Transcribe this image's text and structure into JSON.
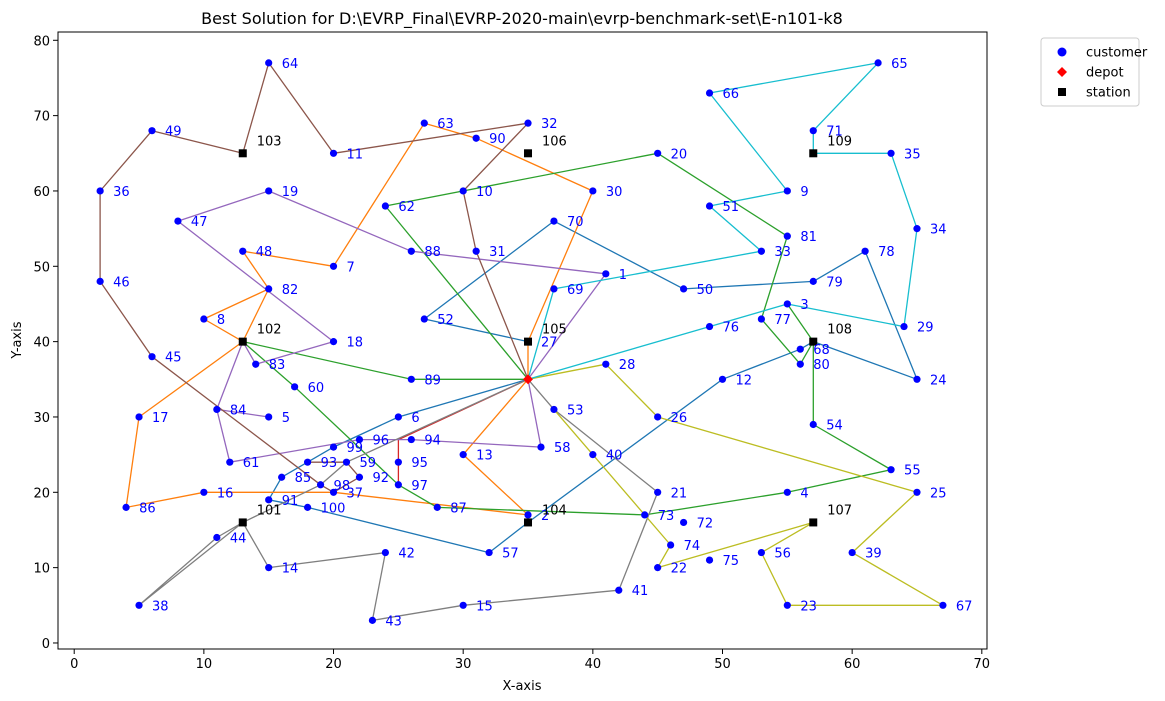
{
  "chart_data": {
    "type": "scatter",
    "title": "Best Solution for D:\\EVRP_Final\\EVRP-2020-main\\evrp-benchmark-set\\E-n101-k8",
    "xlabel": "X-axis",
    "ylabel": "Y-axis",
    "xlim": [
      -1.25,
      70.4
    ],
    "ylim": [
      -0.8,
      81.1
    ],
    "xticks": [
      0,
      10,
      20,
      30,
      40,
      50,
      60,
      70
    ],
    "yticks": [
      0,
      10,
      20,
      30,
      40,
      50,
      60,
      70,
      80
    ],
    "grid": false,
    "legend_position": "outside-top-right",
    "legend": [
      {
        "label": "customer",
        "marker": "circle",
        "color": "#0000ff"
      },
      {
        "label": "depot",
        "marker": "diamond",
        "color": "#ff0000"
      },
      {
        "label": "station",
        "marker": "square",
        "color": "#000000"
      }
    ],
    "colors": {
      "customer": "#0000ff",
      "depot": "#ff0000",
      "station": "#000000",
      "customer_label": "#0000ff",
      "station_label": "#000000"
    },
    "depot": {
      "id": "",
      "x": 35,
      "y": 35
    },
    "customers": [
      {
        "id": "1",
        "x": 41,
        "y": 49
      },
      {
        "id": "2",
        "x": 35,
        "y": 17
      },
      {
        "id": "3",
        "x": 55,
        "y": 45
      },
      {
        "id": "4",
        "x": 55,
        "y": 20
      },
      {
        "id": "5",
        "x": 15,
        "y": 30
      },
      {
        "id": "6",
        "x": 25,
        "y": 30
      },
      {
        "id": "7",
        "x": 20,
        "y": 50
      },
      {
        "id": "8",
        "x": 10,
        "y": 43
      },
      {
        "id": "9",
        "x": 55,
        "y": 60
      },
      {
        "id": "10",
        "x": 30,
        "y": 60
      },
      {
        "id": "11",
        "x": 20,
        "y": 65
      },
      {
        "id": "12",
        "x": 50,
        "y": 35
      },
      {
        "id": "13",
        "x": 30,
        "y": 25
      },
      {
        "id": "14",
        "x": 15,
        "y": 10
      },
      {
        "id": "15",
        "x": 30,
        "y": 5
      },
      {
        "id": "16",
        "x": 10,
        "y": 20
      },
      {
        "id": "17",
        "x": 5,
        "y": 30
      },
      {
        "id": "18",
        "x": 20,
        "y": 40
      },
      {
        "id": "19",
        "x": 15,
        "y": 60
      },
      {
        "id": "20",
        "x": 45,
        "y": 65
      },
      {
        "id": "21",
        "x": 45,
        "y": 20
      },
      {
        "id": "22",
        "x": 45,
        "y": 10
      },
      {
        "id": "23",
        "x": 55,
        "y": 5
      },
      {
        "id": "24",
        "x": 65,
        "y": 35
      },
      {
        "id": "25",
        "x": 65,
        "y": 20
      },
      {
        "id": "26",
        "x": 45,
        "y": 30
      },
      {
        "id": "27",
        "x": 35,
        "y": 40
      },
      {
        "id": "28",
        "x": 41,
        "y": 37
      },
      {
        "id": "29",
        "x": 64,
        "y": 42
      },
      {
        "id": "30",
        "x": 40,
        "y": 60
      },
      {
        "id": "31",
        "x": 31,
        "y": 52
      },
      {
        "id": "32",
        "x": 35,
        "y": 69
      },
      {
        "id": "33",
        "x": 53,
        "y": 52
      },
      {
        "id": "34",
        "x": 65,
        "y": 55
      },
      {
        "id": "35",
        "x": 63,
        "y": 65
      },
      {
        "id": "36",
        "x": 2,
        "y": 60
      },
      {
        "id": "37",
        "x": 20,
        "y": 20
      },
      {
        "id": "38",
        "x": 5,
        "y": 5
      },
      {
        "id": "39",
        "x": 60,
        "y": 12
      },
      {
        "id": "40",
        "x": 40,
        "y": 25
      },
      {
        "id": "41",
        "x": 42,
        "y": 7
      },
      {
        "id": "42",
        "x": 24,
        "y": 12
      },
      {
        "id": "43",
        "x": 23,
        "y": 3
      },
      {
        "id": "44",
        "x": 11,
        "y": 14
      },
      {
        "id": "45",
        "x": 6,
        "y": 38
      },
      {
        "id": "46",
        "x": 2,
        "y": 48
      },
      {
        "id": "47",
        "x": 8,
        "y": 56
      },
      {
        "id": "48",
        "x": 13,
        "y": 52
      },
      {
        "id": "49",
        "x": 6,
        "y": 68
      },
      {
        "id": "50",
        "x": 47,
        "y": 47
      },
      {
        "id": "51",
        "x": 49,
        "y": 58
      },
      {
        "id": "52",
        "x": 27,
        "y": 43
      },
      {
        "id": "53",
        "x": 37,
        "y": 31
      },
      {
        "id": "54",
        "x": 57,
        "y": 29
      },
      {
        "id": "55",
        "x": 63,
        "y": 23
      },
      {
        "id": "56",
        "x": 53,
        "y": 12
      },
      {
        "id": "57",
        "x": 32,
        "y": 12
      },
      {
        "id": "58",
        "x": 36,
        "y": 26
      },
      {
        "id": "59",
        "x": 21,
        "y": 24
      },
      {
        "id": "60",
        "x": 17,
        "y": 34
      },
      {
        "id": "61",
        "x": 12,
        "y": 24
      },
      {
        "id": "62",
        "x": 24,
        "y": 58
      },
      {
        "id": "63",
        "x": 27,
        "y": 69
      },
      {
        "id": "64",
        "x": 15,
        "y": 77
      },
      {
        "id": "65",
        "x": 62,
        "y": 77
      },
      {
        "id": "66",
        "x": 49,
        "y": 73
      },
      {
        "id": "67",
        "x": 67,
        "y": 5
      },
      {
        "id": "68",
        "x": 56,
        "y": 39
      },
      {
        "id": "69",
        "x": 37,
        "y": 47
      },
      {
        "id": "70",
        "x": 37,
        "y": 56
      },
      {
        "id": "71",
        "x": 57,
        "y": 68
      },
      {
        "id": "72",
        "x": 47,
        "y": 16
      },
      {
        "id": "73",
        "x": 44,
        "y": 17
      },
      {
        "id": "74",
        "x": 46,
        "y": 13
      },
      {
        "id": "75",
        "x": 49,
        "y": 11
      },
      {
        "id": "76",
        "x": 49,
        "y": 42
      },
      {
        "id": "77",
        "x": 53,
        "y": 43
      },
      {
        "id": "78",
        "x": 61,
        "y": 52
      },
      {
        "id": "79",
        "x": 57,
        "y": 48
      },
      {
        "id": "80",
        "x": 56,
        "y": 37
      },
      {
        "id": "81",
        "x": 55,
        "y": 54
      },
      {
        "id": "82",
        "x": 15,
        "y": 47
      },
      {
        "id": "83",
        "x": 14,
        "y": 37
      },
      {
        "id": "84",
        "x": 11,
        "y": 31
      },
      {
        "id": "85",
        "x": 16,
        "y": 22
      },
      {
        "id": "86",
        "x": 4,
        "y": 18
      },
      {
        "id": "87",
        "x": 28,
        "y": 18
      },
      {
        "id": "88",
        "x": 26,
        "y": 52
      },
      {
        "id": "89",
        "x": 26,
        "y": 35
      },
      {
        "id": "90",
        "x": 31,
        "y": 67
      },
      {
        "id": "91",
        "x": 15,
        "y": 19
      },
      {
        "id": "92",
        "x": 22,
        "y": 22
      },
      {
        "id": "93",
        "x": 18,
        "y": 24
      },
      {
        "id": "94",
        "x": 26,
        "y": 27
      },
      {
        "id": "95",
        "x": 25,
        "y": 24
      },
      {
        "id": "96",
        "x": 22,
        "y": 27
      },
      {
        "id": "97",
        "x": 25,
        "y": 21
      },
      {
        "id": "98",
        "x": 19,
        "y": 21
      },
      {
        "id": "99",
        "x": 20,
        "y": 26
      },
      {
        "id": "100",
        "x": 18,
        "y": 18
      }
    ],
    "stations": [
      {
        "id": "101",
        "x": 13,
        "y": 16
      },
      {
        "id": "102",
        "x": 13,
        "y": 40
      },
      {
        "id": "103",
        "x": 13,
        "y": 65
      },
      {
        "id": "104",
        "x": 35,
        "y": 16
      },
      {
        "id": "105",
        "x": 35,
        "y": 40
      },
      {
        "id": "106",
        "x": 35,
        "y": 65
      },
      {
        "id": "107",
        "x": 57,
        "y": 16
      },
      {
        "id": "108",
        "x": 57,
        "y": 40
      },
      {
        "id": "109",
        "x": 57,
        "y": 65
      }
    ],
    "routes": [
      {
        "color": "#1f77b4",
        "path": [
          [
            35,
            35
          ],
          [
            25,
            30
          ],
          [
            20,
            26
          ],
          [
            16,
            22
          ],
          [
            15,
            19
          ],
          [
            18,
            18
          ],
          [
            32,
            12
          ],
          [
            35,
            16
          ],
          [
            50,
            35
          ],
          [
            56,
            39
          ],
          [
            57,
            40
          ],
          [
            65,
            35
          ],
          [
            61,
            52
          ],
          [
            57,
            48
          ],
          [
            47,
            47
          ],
          [
            37,
            56
          ],
          [
            27,
            43
          ],
          [
            35,
            40
          ]
        ]
      },
      {
        "color": "#ff7f0e",
        "path": [
          [
            35,
            35
          ],
          [
            30,
            25
          ],
          [
            35,
            17
          ],
          [
            20,
            20
          ],
          [
            10,
            20
          ],
          [
            4,
            18
          ],
          [
            5,
            30
          ],
          [
            13,
            40
          ],
          [
            15,
            47
          ],
          [
            10,
            43
          ],
          [
            13,
            40
          ]
        ]
      },
      {
        "color": "#ff7f0e",
        "path": [
          [
            15,
            47
          ],
          [
            13,
            52
          ],
          [
            20,
            50
          ],
          [
            27,
            69
          ],
          [
            31,
            67
          ],
          [
            40,
            60
          ],
          [
            35,
            40
          ],
          [
            35,
            35
          ]
        ]
      },
      {
        "color": "#2ca02c",
        "path": [
          [
            35,
            35
          ],
          [
            26,
            35
          ],
          [
            13,
            40
          ],
          [
            17,
            34
          ],
          [
            25,
            21
          ],
          [
            28,
            18
          ],
          [
            44,
            17
          ],
          [
            55,
            20
          ],
          [
            63,
            23
          ],
          [
            57,
            29
          ],
          [
            57,
            40
          ],
          [
            55,
            45
          ]
        ]
      },
      {
        "color": "#2ca02c",
        "path": [
          [
            57,
            40
          ],
          [
            56,
            37
          ],
          [
            53,
            43
          ],
          [
            55,
            54
          ],
          [
            45,
            65
          ],
          [
            24,
            58
          ],
          [
            35,
            35
          ]
        ]
      },
      {
        "color": "#d62728",
        "path": [
          [
            35,
            35
          ],
          [
            25,
            27
          ],
          [
            25,
            24
          ],
          [
            25,
            21
          ]
        ]
      },
      {
        "color": "#9467bd",
        "path": [
          [
            35,
            35
          ],
          [
            41,
            49
          ],
          [
            26,
            52
          ],
          [
            15,
            60
          ],
          [
            8,
            56
          ],
          [
            20,
            40
          ],
          [
            14,
            37
          ],
          [
            13,
            40
          ],
          [
            11,
            31
          ],
          [
            12,
            24
          ],
          [
            22,
            27
          ],
          [
            26,
            27
          ],
          [
            36,
            26
          ],
          [
            35,
            35
          ]
        ]
      },
      {
        "color": "#9467bd",
        "path": [
          [
            11,
            31
          ],
          [
            15,
            30
          ]
        ]
      },
      {
        "color": "#8c564b",
        "path": [
          [
            35,
            35
          ],
          [
            31,
            52
          ],
          [
            30,
            60
          ],
          [
            35,
            69
          ],
          [
            20,
            65
          ],
          [
            15,
            77
          ],
          [
            13,
            65
          ],
          [
            6,
            68
          ],
          [
            2,
            60
          ],
          [
            2,
            48
          ],
          [
            6,
            38
          ],
          [
            19,
            21
          ],
          [
            20,
            20
          ],
          [
            22,
            22
          ],
          [
            21,
            24
          ],
          [
            18,
            24
          ]
        ]
      },
      {
        "color": "#7f7f7f",
        "path": [
          [
            35,
            35
          ],
          [
            21,
            24
          ],
          [
            19,
            21
          ],
          [
            13,
            16
          ],
          [
            5,
            5
          ],
          [
            11,
            14
          ],
          [
            13,
            16
          ],
          [
            15,
            10
          ],
          [
            24,
            12
          ],
          [
            23,
            3
          ],
          [
            30,
            5
          ],
          [
            42,
            7
          ],
          [
            45,
            20
          ],
          [
            37,
            31
          ],
          [
            35,
            35
          ]
        ]
      },
      {
        "color": "#bcbd22",
        "path": [
          [
            35,
            35
          ],
          [
            41,
            37
          ],
          [
            45,
            30
          ],
          [
            65,
            20
          ],
          [
            60,
            12
          ],
          [
            67,
            5
          ],
          [
            55,
            5
          ],
          [
            53,
            12
          ],
          [
            57,
            16
          ],
          [
            45,
            10
          ],
          [
            46,
            13
          ],
          [
            37,
            31
          ]
        ]
      },
      {
        "color": "#17becf",
        "path": [
          [
            35,
            35
          ],
          [
            37,
            47
          ],
          [
            53,
            52
          ],
          [
            49,
            58
          ],
          [
            55,
            60
          ],
          [
            49,
            73
          ],
          [
            62,
            77
          ],
          [
            57,
            68
          ],
          [
            57,
            65
          ],
          [
            63,
            65
          ],
          [
            65,
            55
          ],
          [
            64,
            42
          ],
          [
            55,
            45
          ],
          [
            49,
            42
          ],
          [
            35,
            35
          ]
        ]
      }
    ]
  }
}
